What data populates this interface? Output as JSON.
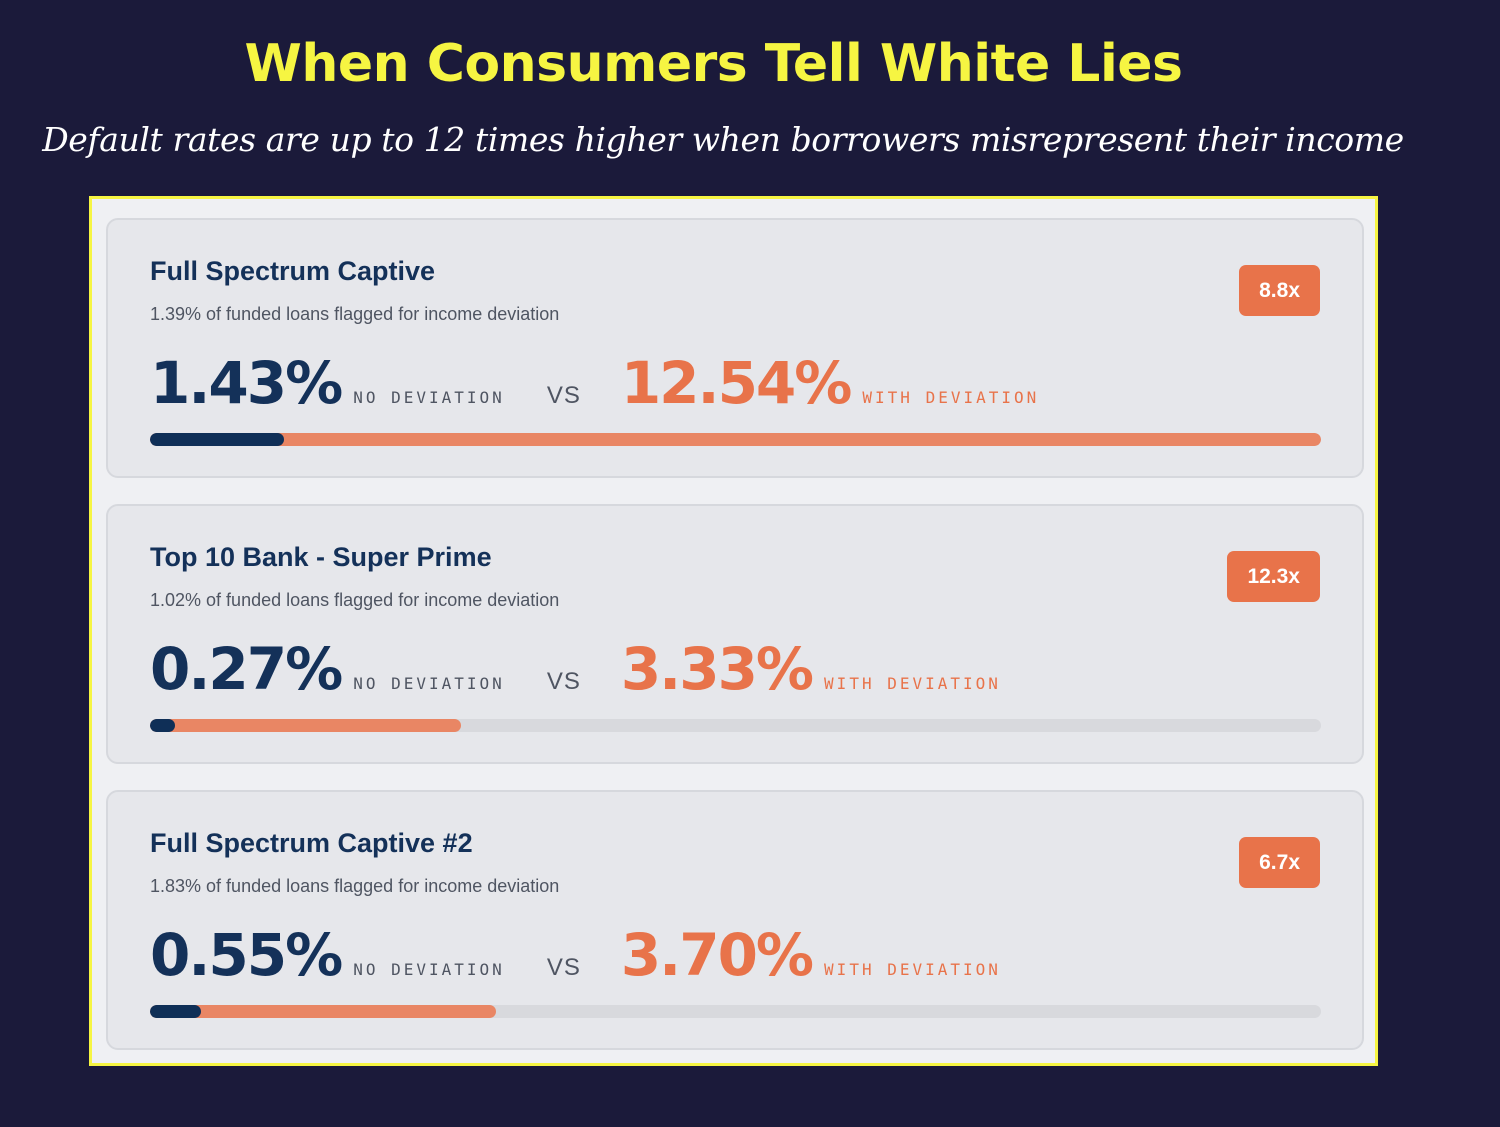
{
  "title": "When Consumers Tell White Lies",
  "subtitle": "Default rates are up to 12 times higher when borrowers misrepresent their income",
  "colors": {
    "background": "#1b1a3a",
    "title": "#f6f542",
    "navy": "#143159",
    "accent_orange": "#e8734a",
    "track": "#d8d9dd"
  },
  "labels": {
    "no_deviation": "NO DEVIATION",
    "with_deviation": "WITH DEVIATION",
    "vs": "VS"
  },
  "chart_data": {
    "type": "bar",
    "title": "When Consumers Tell White Lies",
    "subtitle": "Default rates are up to 12 times higher when borrowers misrepresent their income",
    "scale_max_percent": 12.54,
    "categories": [
      "Full Spectrum Captive",
      "Top 10 Bank - Super Prime",
      "Full Spectrum Captive #2"
    ],
    "series": [
      {
        "name": "NO DEVIATION",
        "values": [
          1.43,
          0.27,
          0.55
        ]
      },
      {
        "name": "WITH DEVIATION",
        "values": [
          12.54,
          3.33,
          3.7
        ]
      }
    ],
    "cards": [
      {
        "name": "Full Spectrum Captive",
        "flagged": "1.39% of funded loans flagged for income deviation",
        "multiplier": "8.8x",
        "no_deviation_label": "1.43%",
        "with_deviation_label": "12.54%",
        "no_deviation": 1.43,
        "with_deviation": 12.54
      },
      {
        "name": "Top 10 Bank - Super Prime",
        "flagged": "1.02% of funded loans flagged for income deviation",
        "multiplier": "12.3x",
        "no_deviation_label": "0.27%",
        "with_deviation_label": "3.33%",
        "no_deviation": 0.27,
        "with_deviation": 3.33
      },
      {
        "name": "Full Spectrum Captive #2",
        "flagged": "1.83% of funded loans flagged for income deviation",
        "multiplier": "6.7x",
        "no_deviation_label": "0.55%",
        "with_deviation_label": "3.70%",
        "no_deviation": 0.55,
        "with_deviation": 3.7
      }
    ]
  }
}
